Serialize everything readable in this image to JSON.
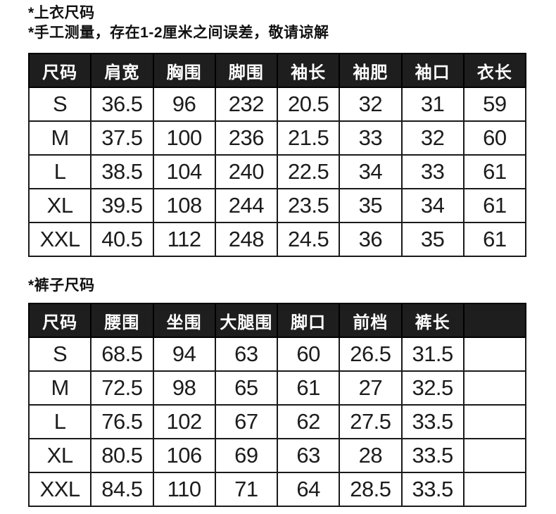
{
  "tops_section": {
    "title": "*上衣尺码",
    "note": "*手工测量，存在1-2厘米之间误差，敬请谅解",
    "table": {
      "headers": [
        "尺码",
        "肩宽",
        "胸围",
        "脚围",
        "袖长",
        "袖肥",
        "袖口",
        "衣长"
      ],
      "rows": [
        [
          "S",
          "36.5",
          "96",
          "232",
          "20.5",
          "32",
          "31",
          "59"
        ],
        [
          "M",
          "37.5",
          "100",
          "236",
          "21.5",
          "33",
          "32",
          "60"
        ],
        [
          "L",
          "38.5",
          "104",
          "240",
          "22.5",
          "34",
          "33",
          "61"
        ],
        [
          "XL",
          "39.5",
          "108",
          "244",
          "23.5",
          "35",
          "34",
          "61"
        ],
        [
          "XXL",
          "40.5",
          "112",
          "248",
          "24.5",
          "36",
          "35",
          "61"
        ]
      ]
    }
  },
  "pants_section": {
    "title": "*裤子尺码",
    "table": {
      "headers": [
        "尺码",
        "腰围",
        "坐围",
        "大腿围",
        "脚口",
        "前档",
        "裤长",
        ""
      ],
      "rows": [
        [
          "S",
          "68.5",
          "94",
          "63",
          "60",
          "26.5",
          "31.5",
          ""
        ],
        [
          "M",
          "72.5",
          "98",
          "65",
          "61",
          "27",
          "32.5",
          ""
        ],
        [
          "L",
          "76.5",
          "102",
          "67",
          "62",
          "27.5",
          "33.5",
          ""
        ],
        [
          "XL",
          "80.5",
          "106",
          "69",
          "63",
          "28",
          "33.5",
          ""
        ],
        [
          "XXL",
          "84.5",
          "110",
          "71",
          "64",
          "28.5",
          "33.5",
          ""
        ]
      ]
    }
  },
  "colors": {
    "header_bg": "#1e1e1e",
    "header_text": "#ffffff",
    "border": "#1a1a1a",
    "body_text": "#1c1c1c",
    "page_bg": "#ffffff"
  }
}
